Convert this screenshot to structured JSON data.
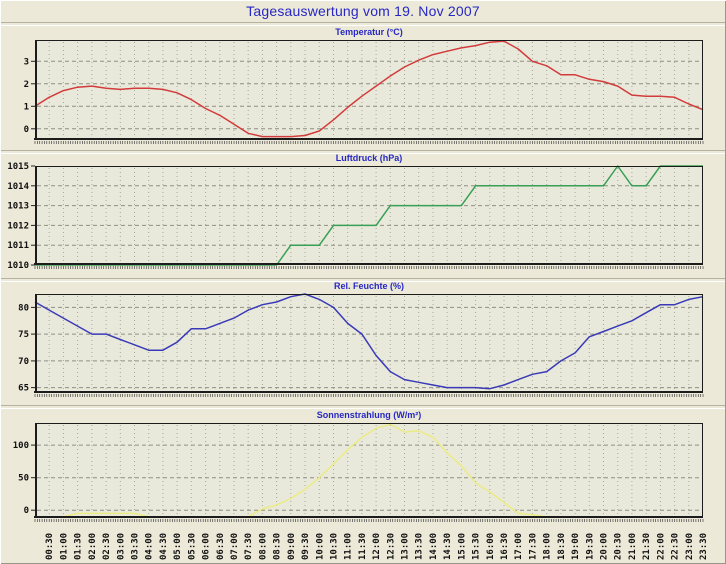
{
  "window": {
    "title": "Tagesauswertung vom 19. Nov 2007"
  },
  "x_axis": {
    "tick_labels": [
      "00:30",
      "01:00",
      "01:30",
      "02:00",
      "02:30",
      "03:00",
      "03:30",
      "04:00",
      "04:30",
      "05:00",
      "05:30",
      "06:00",
      "06:30",
      "07:00",
      "07:30",
      "08:00",
      "08:30",
      "09:00",
      "09:30",
      "10:00",
      "10:30",
      "11:00",
      "11:30",
      "12:00",
      "12:30",
      "13:00",
      "13:30",
      "14:00",
      "14:30",
      "15:00",
      "15:30",
      "16:00",
      "16:30",
      "17:00",
      "17:30",
      "18:00",
      "18:30",
      "19:00",
      "19:30",
      "20:00",
      "20:30",
      "21:00",
      "21:30",
      "22:00",
      "22:30",
      "23:00",
      "23:30"
    ],
    "series_start": "00:00",
    "step_minutes": 30
  },
  "chart_data": [
    {
      "type": "line",
      "key": "temperature",
      "title": "Temperatur (°C)",
      "unit": "°C",
      "color": "#d23b3b",
      "y_ticks": [
        0,
        1,
        2,
        3
      ],
      "ylim": [
        -0.5,
        3.95
      ],
      "values": [
        1.0,
        1.4,
        1.7,
        1.85,
        1.9,
        1.8,
        1.75,
        1.8,
        1.8,
        1.75,
        1.6,
        1.3,
        0.9,
        0.6,
        0.2,
        -0.2,
        -0.35,
        -0.35,
        -0.35,
        -0.3,
        -0.1,
        0.4,
        0.95,
        1.45,
        1.9,
        2.35,
        2.75,
        3.05,
        3.3,
        3.45,
        3.6,
        3.7,
        3.85,
        3.9,
        3.55,
        3.0,
        2.8,
        2.4,
        2.4,
        2.2,
        2.1,
        1.9,
        1.5,
        1.45,
        1.45,
        1.4,
        1.1,
        0.85
      ]
    },
    {
      "type": "line",
      "key": "pressure",
      "title": "Luftdruck (hPa)",
      "unit": "hPa",
      "color": "#37a055",
      "y_ticks": [
        1010,
        1011,
        1012,
        1013,
        1014,
        1015
      ],
      "ylim": [
        1010,
        1015
      ],
      "values": [
        1010,
        1010,
        1010,
        1010,
        1010,
        1010,
        1010,
        1010,
        1010,
        1010,
        1010,
        1010,
        1010,
        1010,
        1010,
        1010,
        1010,
        1010,
        1011,
        1011,
        1011,
        1012,
        1012,
        1012,
        1012,
        1013,
        1013,
        1013,
        1013,
        1013,
        1013,
        1014,
        1014,
        1014,
        1014,
        1014,
        1014,
        1014,
        1014,
        1014,
        1014,
        1015,
        1014,
        1014,
        1015,
        1015,
        1015,
        1015
      ]
    },
    {
      "type": "line",
      "key": "humidity",
      "title": "Rel. Feuchte (%)",
      "unit": "%",
      "color": "#3a3ab8",
      "y_ticks": [
        65,
        70,
        75,
        80
      ],
      "ylim": [
        64,
        82.5
      ],
      "values": [
        81,
        79.5,
        78,
        76.5,
        75,
        75,
        74,
        73,
        72,
        72,
        73.5,
        76,
        76,
        77,
        78,
        79.5,
        80.5,
        81,
        82,
        82.5,
        81.5,
        80,
        77,
        75,
        71,
        68,
        66.5,
        66,
        65.5,
        65,
        65,
        65,
        64.8,
        65.5,
        66.5,
        67.5,
        68,
        70,
        71.5,
        74.5,
        75.5,
        76.5,
        77.5,
        79,
        80.5,
        80.5,
        81.5,
        82
      ]
    },
    {
      "type": "line",
      "key": "solar-radiation",
      "title": "Sonnenstrahlung (W/m²)",
      "unit": "W/m²",
      "color": "#ebeb84",
      "y_ticks": [
        0,
        50,
        100
      ],
      "ylim": [
        -12,
        134
      ],
      "values": [
        -10,
        -10,
        -10,
        -5,
        -5,
        -5,
        -5,
        -5,
        -10,
        -10,
        -10,
        -10,
        -10,
        -10,
        -10,
        -10,
        2,
        8,
        18,
        32,
        50,
        71,
        93,
        112,
        126,
        132,
        120,
        122,
        112,
        88,
        68,
        42,
        28,
        12,
        -5,
        -7,
        -10,
        -10,
        -10,
        -10,
        -10,
        -10,
        -10,
        -10,
        -10,
        -10,
        -10,
        -10
      ]
    }
  ]
}
